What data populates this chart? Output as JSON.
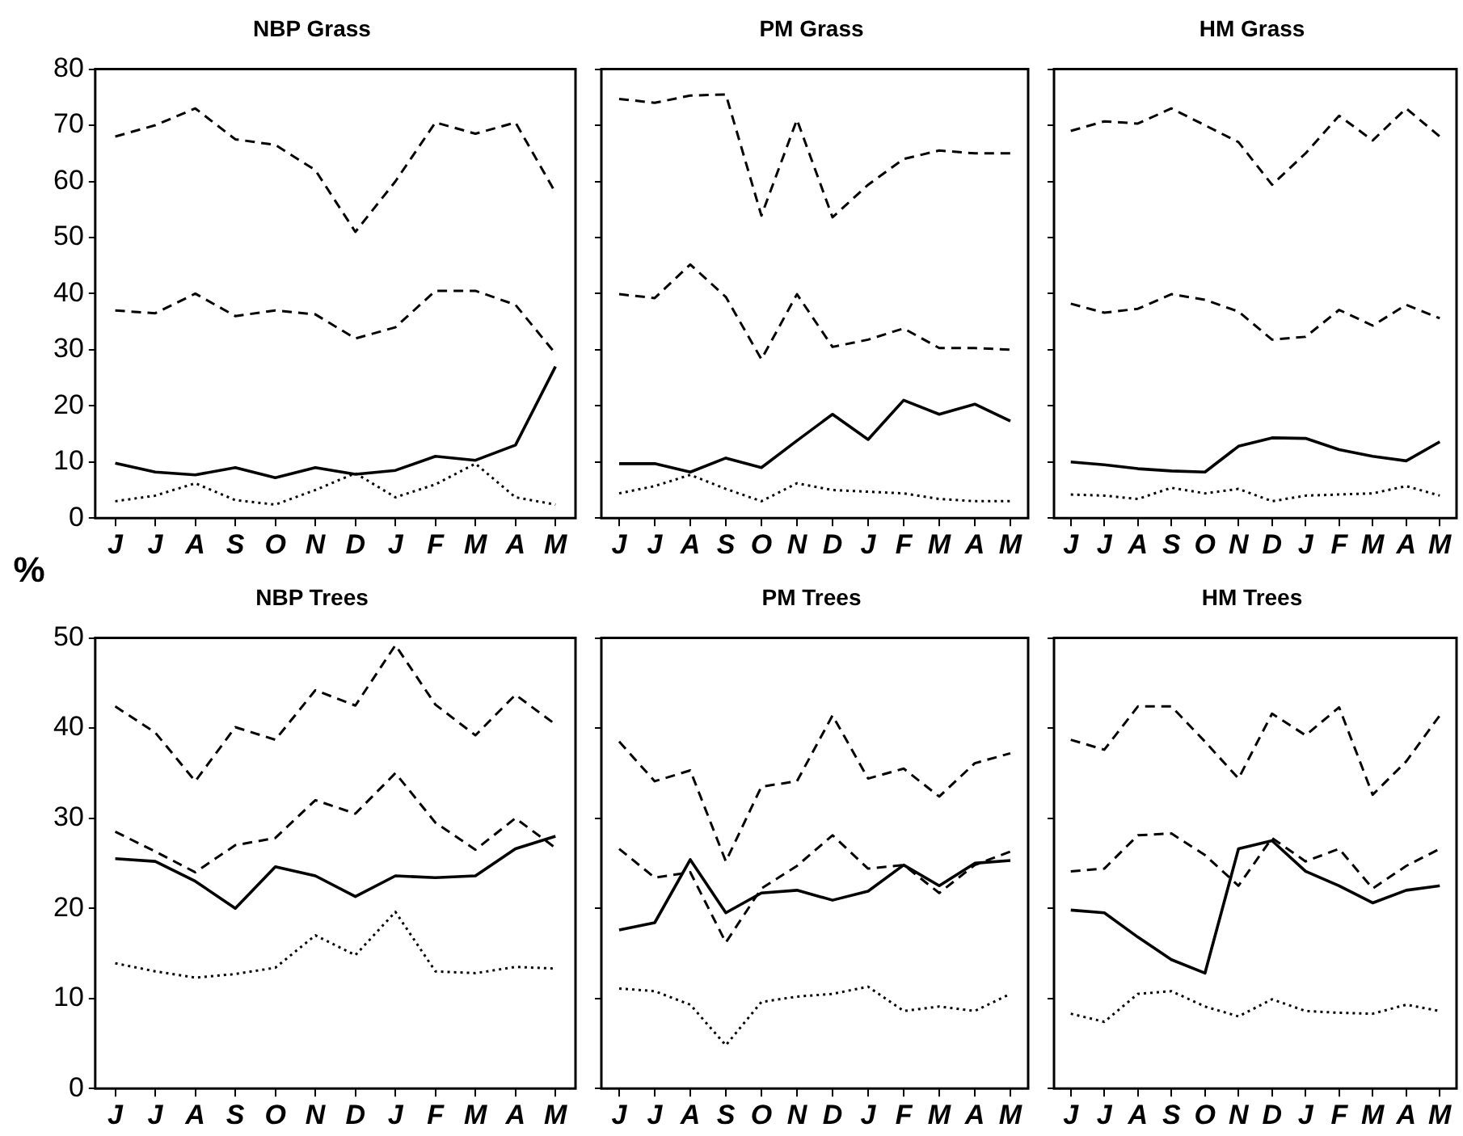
{
  "chart_data": [
    {
      "type": "line",
      "title": "NBP Grass",
      "ylabel": "%",
      "categories": [
        "J",
        "J",
        "A",
        "S",
        "O",
        "N",
        "D",
        "J",
        "F",
        "M",
        "A",
        "M"
      ],
      "ylim": [
        0,
        80
      ],
      "yticks": [
        0,
        10,
        20,
        30,
        40,
        50,
        60,
        70,
        80
      ],
      "series": [
        {
          "color": "#000000",
          "line_style": "dashed",
          "values": [
            68,
            70,
            73,
            67.5,
            66.5,
            62,
            51,
            60,
            70.5,
            68.5,
            70.5,
            58
          ]
        },
        {
          "color": "#000000",
          "line_style": "dashed",
          "values": [
            37,
            36.5,
            40,
            36,
            37,
            36.3,
            32,
            34,
            40.5,
            40.5,
            38,
            29.3
          ]
        },
        {
          "color": "#000000",
          "line_style": "solid",
          "values": [
            9.8,
            8.2,
            7.7,
            9,
            7.2,
            9,
            7.8,
            8.5,
            11,
            10.3,
            13,
            27
          ]
        },
        {
          "color": "#000000",
          "line_style": "dotted",
          "values": [
            3,
            4,
            6.2,
            3.2,
            2.4,
            5,
            8,
            3.7,
            6,
            9.7,
            3.7,
            2.4
          ]
        }
      ]
    },
    {
      "type": "line",
      "title": "PM Grass",
      "categories": [
        "J",
        "J",
        "A",
        "S",
        "O",
        "N",
        "D",
        "J",
        "F",
        "M",
        "A",
        "M"
      ],
      "ylim": [
        0,
        80
      ],
      "yticks": [
        0,
        10,
        20,
        30,
        40,
        50,
        60,
        70,
        80
      ],
      "tick_labels": "x",
      "series": [
        {
          "color": "#000000",
          "line_style": "dashed",
          "values": [
            74.7,
            74,
            75.3,
            75.5,
            53.9,
            71,
            53.6,
            59.4,
            64,
            65.5,
            65,
            65
          ]
        },
        {
          "color": "#000000",
          "line_style": "dashed",
          "values": [
            39.9,
            39.2,
            45.2,
            39.4,
            28.3,
            39.9,
            30.5,
            31.8,
            33.8,
            30.3,
            30.3,
            30
          ]
        },
        {
          "color": "#000000",
          "line_style": "solid",
          "values": [
            9.7,
            9.7,
            8.2,
            10.7,
            9,
            13.8,
            18.5,
            14,
            21,
            18.5,
            20.3,
            17.3
          ]
        },
        {
          "color": "#000000",
          "line_style": "dotted",
          "values": [
            4.4,
            5.7,
            7.7,
            5.2,
            3,
            6.2,
            5,
            4.7,
            4.4,
            3.4,
            3,
            3
          ]
        }
      ]
    },
    {
      "type": "line",
      "title": "HM Grass",
      "categories": [
        "J",
        "J",
        "A",
        "S",
        "O",
        "N",
        "D",
        "J",
        "F",
        "M",
        "A",
        "M"
      ],
      "ylim": [
        0,
        80
      ],
      "yticks": [
        0,
        10,
        20,
        30,
        40,
        50,
        60,
        70,
        80
      ],
      "tick_labels": "x",
      "series": [
        {
          "color": "#000000",
          "line_style": "dashed",
          "values": [
            69,
            70.7,
            70.3,
            73,
            70,
            67,
            59.4,
            65,
            71.7,
            67.3,
            73,
            68
          ]
        },
        {
          "color": "#000000",
          "line_style": "dashed",
          "values": [
            38.2,
            36.6,
            37.3,
            39.9,
            38.9,
            36.8,
            31.8,
            32.3,
            37.1,
            34.3,
            38,
            35.6
          ]
        },
        {
          "color": "#000000",
          "line_style": "solid",
          "values": [
            10,
            9.5,
            8.8,
            8.4,
            8.2,
            12.8,
            14.3,
            14.2,
            12.2,
            11,
            10.2,
            13.6
          ]
        },
        {
          "color": "#000000",
          "line_style": "dotted",
          "values": [
            4.2,
            4,
            3.4,
            5.4,
            4.4,
            5.2,
            3,
            4,
            4.2,
            4.4,
            5.7,
            4
          ]
        }
      ]
    },
    {
      "type": "line",
      "title": "NBP Trees",
      "categories": [
        "J",
        "J",
        "A",
        "S",
        "O",
        "N",
        "D",
        "J",
        "F",
        "M",
        "A",
        "M"
      ],
      "ylim": [
        0,
        50
      ],
      "yticks": [
        0,
        10,
        20,
        30,
        40,
        50
      ],
      "series": [
        {
          "color": "#000000",
          "line_style": "dashed",
          "values": [
            42.4,
            39.5,
            34.1,
            40.1,
            38.7,
            44.2,
            42.5,
            49.2,
            42.6,
            39.2,
            43.7,
            40.4
          ]
        },
        {
          "color": "#000000",
          "line_style": "dashed",
          "values": [
            28.5,
            26.3,
            24,
            27,
            27.8,
            32,
            30.5,
            35,
            29.5,
            26.5,
            30,
            26.7
          ]
        },
        {
          "color": "#000000",
          "line_style": "solid",
          "values": [
            25.5,
            25.2,
            23,
            20,
            24.6,
            23.6,
            21.3,
            23.6,
            23.4,
            23.6,
            26.6,
            28
          ]
        },
        {
          "color": "#000000",
          "line_style": "dotted",
          "values": [
            13.9,
            13,
            12.3,
            12.7,
            13.4,
            17,
            14.8,
            19.6,
            13,
            12.8,
            13.5,
            13.3
          ]
        }
      ]
    },
    {
      "type": "line",
      "title": "PM Trees",
      "categories": [
        "J",
        "J",
        "A",
        "S",
        "O",
        "N",
        "D",
        "J",
        "F",
        "M",
        "A",
        "M"
      ],
      "ylim": [
        0,
        50
      ],
      "yticks": [
        0,
        10,
        20,
        30,
        40,
        50
      ],
      "tick_labels": "x",
      "series": [
        {
          "color": "#000000",
          "line_style": "dashed",
          "values": [
            38.5,
            34.1,
            35.3,
            25.2,
            33.5,
            34.1,
            41.4,
            34.4,
            35.5,
            32.4,
            36.1,
            37.2
          ]
        },
        {
          "color": "#000000",
          "line_style": "dashed",
          "values": [
            26.6,
            23.4,
            24,
            16.2,
            22.2,
            24.7,
            28.1,
            24.4,
            24.8,
            21.7,
            24.8,
            26.3
          ]
        },
        {
          "color": "#000000",
          "line_style": "solid",
          "values": [
            17.6,
            18.4,
            25.4,
            19.5,
            21.7,
            22,
            20.9,
            21.9,
            24.8,
            22.5,
            25,
            25.3
          ]
        },
        {
          "color": "#000000",
          "line_style": "dotted",
          "values": [
            11.1,
            10.8,
            9.3,
            4.8,
            9.6,
            10.2,
            10.5,
            11.3,
            8.6,
            9.1,
            8.6,
            10.5
          ]
        }
      ]
    },
    {
      "type": "line",
      "title": "HM Trees",
      "categories": [
        "J",
        "J",
        "A",
        "S",
        "O",
        "N",
        "D",
        "J",
        "F",
        "M",
        "A",
        "M"
      ],
      "ylim": [
        0,
        50
      ],
      "yticks": [
        0,
        10,
        20,
        30,
        40,
        50
      ],
      "tick_labels": "x",
      "series": [
        {
          "color": "#000000",
          "line_style": "dashed",
          "values": [
            38.7,
            37.6,
            42.4,
            42.4,
            38.5,
            34.4,
            41.6,
            39.2,
            42.3,
            32.6,
            36.3,
            41.4
          ]
        },
        {
          "color": "#000000",
          "line_style": "dashed",
          "values": [
            24.1,
            24.4,
            28.1,
            28.3,
            25.9,
            22.5,
            27.8,
            25.2,
            26.6,
            22.2,
            24.7,
            26.6
          ]
        },
        {
          "color": "#000000",
          "line_style": "solid",
          "values": [
            19.8,
            19.5,
            16.8,
            14.3,
            12.8,
            26.6,
            27.5,
            24.1,
            22.5,
            20.6,
            22,
            22.5
          ]
        },
        {
          "color": "#000000",
          "line_style": "dotted",
          "values": [
            8.3,
            7.4,
            10.5,
            10.8,
            9.1,
            8,
            9.9,
            8.6,
            8.4,
            8.3,
            9.3,
            8.6
          ]
        }
      ]
    }
  ]
}
